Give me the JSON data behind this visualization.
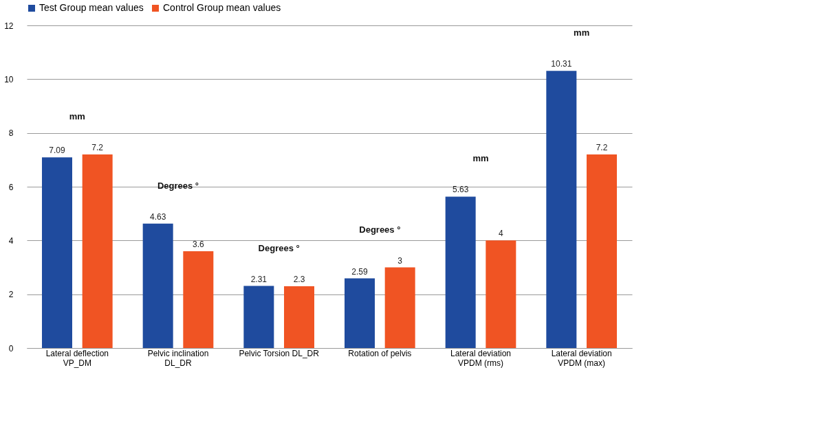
{
  "chart_data": {
    "type": "bar",
    "categories": [
      "Lateral deflection\nVP_DM",
      "Pelvic inclination\nDL_DR",
      "Pelvic Torsion DL_DR",
      "Rotation of pelvis",
      "Lateral deviation\nVPDM (rms)",
      "Lateral deviation\nVPDM (max)"
    ],
    "series": [
      {
        "name": "Test Group mean values",
        "color": "#1f4b9e",
        "values": [
          7.09,
          4.63,
          2.31,
          2.59,
          5.63,
          10.31
        ]
      },
      {
        "name": "Control Group mean values",
        "color": "#f05423",
        "values": [
          7.2,
          3.6,
          2.3,
          3,
          4,
          7.2
        ]
      }
    ],
    "ylim": [
      0,
      12
    ],
    "yticks": [
      0,
      2,
      4,
      6,
      8,
      10,
      12
    ],
    "grid": "y",
    "legend": "top",
    "data_labels": true,
    "annotations": [
      "mm",
      "Degrees °",
      "Degrees °",
      "Degrees °",
      "mm",
      "mm"
    ]
  }
}
